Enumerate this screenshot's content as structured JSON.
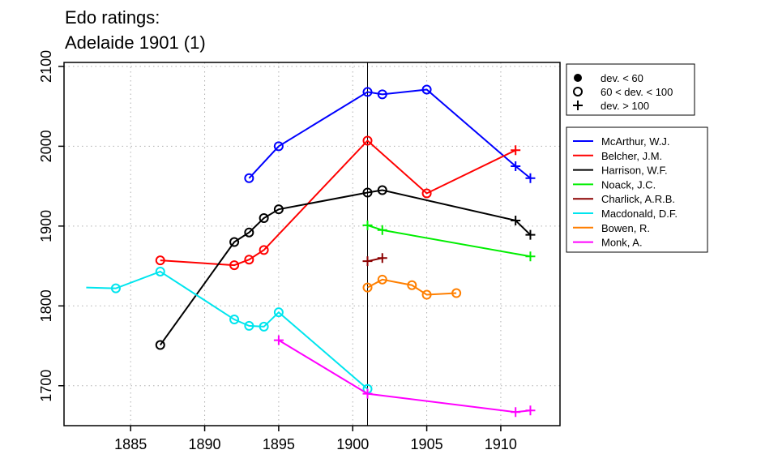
{
  "chart_data": {
    "type": "line",
    "title": [
      "Edo ratings:",
      "Adelaide 1901 (1)"
    ],
    "xlabel": "",
    "ylabel": "",
    "xlim": [
      1880.5,
      1914
    ],
    "ylim": [
      1650,
      2105
    ],
    "x_ticks": [
      1885,
      1890,
      1895,
      1900,
      1905,
      1910
    ],
    "y_ticks": [
      1700,
      1800,
      1900,
      2000,
      2100
    ],
    "grid": "dotted",
    "reference_line_x": 1901,
    "legend_position": "top-right",
    "marker_legend": [
      {
        "marker": "dot",
        "label": "dev. < 60"
      },
      {
        "marker": "circle",
        "label": "60 < dev. < 100"
      },
      {
        "marker": "plus",
        "label": "dev. > 100"
      }
    ],
    "series": [
      {
        "name": "McArthur, W.J.",
        "color": "#0000ff",
        "points": [
          [
            1893,
            1960,
            "circle"
          ],
          [
            1895,
            2000,
            "circle"
          ],
          [
            1901,
            2068,
            "circle"
          ],
          [
            1902,
            2065,
            "circle"
          ],
          [
            1905,
            2071,
            "circle"
          ],
          [
            1911,
            1975,
            "plus"
          ],
          [
            1912,
            1960,
            "plus"
          ]
        ]
      },
      {
        "name": "Belcher, J.M.",
        "color": "#ff0000",
        "points": [
          [
            1887,
            1857,
            "circle"
          ],
          [
            1892,
            1851,
            "circle"
          ],
          [
            1893,
            1858,
            "circle"
          ],
          [
            1894,
            1870,
            "circle"
          ],
          [
            1901,
            2007,
            "circle"
          ],
          [
            1905,
            1941,
            "circle"
          ],
          [
            1911,
            1995,
            "plus"
          ]
        ]
      },
      {
        "name": "Harrison, W.F.",
        "color": "#000000",
        "points": [
          [
            1887,
            1751,
            "circle"
          ],
          [
            1892,
            1880,
            "circle"
          ],
          [
            1893,
            1892,
            "circle"
          ],
          [
            1894,
            1910,
            "circle"
          ],
          [
            1895,
            1921,
            "circle"
          ],
          [
            1901,
            1942,
            "circle"
          ],
          [
            1902,
            1945,
            "circle"
          ],
          [
            1911,
            1907,
            "plus"
          ],
          [
            1912,
            1889,
            "plus"
          ]
        ]
      },
      {
        "name": "Noack, J.C.",
        "color": "#00ee00",
        "points": [
          [
            1901,
            1901,
            "plus"
          ],
          [
            1902,
            1895,
            "plus"
          ],
          [
            1912,
            1862,
            "plus"
          ]
        ]
      },
      {
        "name": "Charlick, A.R.B.",
        "color": "#8b0000",
        "points": [
          [
            1901,
            1856,
            "plus"
          ],
          [
            1902,
            1860,
            "plus"
          ]
        ]
      },
      {
        "name": "Macdonald, D.F.",
        "color": "#00e5ee",
        "points": [
          [
            1882,
            1823,
            "none"
          ],
          [
            1884,
            1822,
            "circle"
          ],
          [
            1887,
            1843,
            "circle"
          ],
          [
            1892,
            1783,
            "circle"
          ],
          [
            1893,
            1775,
            "circle"
          ],
          [
            1894,
            1774,
            "circle"
          ],
          [
            1895,
            1792,
            "circle"
          ],
          [
            1901,
            1696,
            "circle"
          ]
        ]
      },
      {
        "name": "Bowen, R.",
        "color": "#ff7f00",
        "points": [
          [
            1901,
            1823,
            "circle"
          ],
          [
            1902,
            1833,
            "circle"
          ],
          [
            1904,
            1826,
            "circle"
          ],
          [
            1905,
            1814,
            "circle"
          ],
          [
            1907,
            1816,
            "circle"
          ]
        ]
      },
      {
        "name": "Monk, A.",
        "color": "#ff00ff",
        "points": [
          [
            1895,
            1757,
            "plus"
          ],
          [
            1901,
            1690,
            "plus"
          ],
          [
            1911,
            1667,
            "plus"
          ],
          [
            1912,
            1669,
            "plus"
          ]
        ]
      }
    ]
  }
}
